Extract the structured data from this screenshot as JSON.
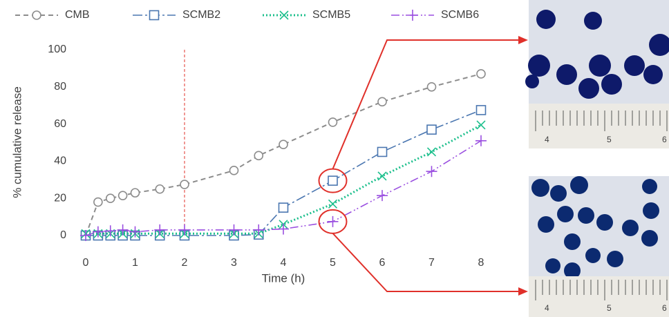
{
  "chart_data": {
    "type": "line",
    "x_label": "Time (h)",
    "y_label": "% cumulative release",
    "x": [
      0,
      0.25,
      0.5,
      0.75,
      1,
      1.5,
      2,
      3,
      3.5,
      4,
      5,
      6,
      7,
      8
    ],
    "series": [
      {
        "name": "CMB",
        "color": "#8c8c8c",
        "marker": "circle",
        "values": [
          0,
          18,
          20,
          21.5,
          23,
          25,
          27.5,
          35,
          43,
          49,
          61,
          72,
          80,
          87
        ]
      },
      {
        "name": "SCMB2",
        "color": "#4a76b0",
        "marker": "square",
        "values": [
          0,
          0,
          0,
          0,
          0,
          0,
          0,
          0,
          0.5,
          15,
          29.5,
          45,
          57,
          67.5
        ]
      },
      {
        "name": "SCMB5",
        "color": "#1cbf8c",
        "marker": "x",
        "values": [
          1,
          1,
          1,
          1,
          1,
          1,
          1,
          1,
          1,
          6,
          17,
          32,
          45,
          59.5
        ]
      },
      {
        "name": "SCMB6",
        "color": "#9a4fe0",
        "marker": "plus",
        "values": [
          0,
          2,
          2.5,
          3,
          2,
          3,
          3,
          3,
          3,
          3.5,
          7.5,
          21.5,
          34.5,
          51
        ]
      }
    ],
    "xlim": [
      0,
      8
    ],
    "xticks": [
      0,
      1,
      2,
      3,
      4,
      5,
      6,
      7,
      8
    ],
    "ylim": [
      0,
      100
    ],
    "yticks": [
      0,
      20,
      40,
      60,
      80,
      100
    ],
    "reference_x": 2,
    "highlight_x": 5,
    "legend": "top",
    "grid": false
  },
  "images": [
    {
      "ruler_labels": [
        "4",
        "5",
        "6"
      ]
    },
    {
      "ruler_labels": [
        "4",
        "5",
        "6"
      ]
    }
  ]
}
